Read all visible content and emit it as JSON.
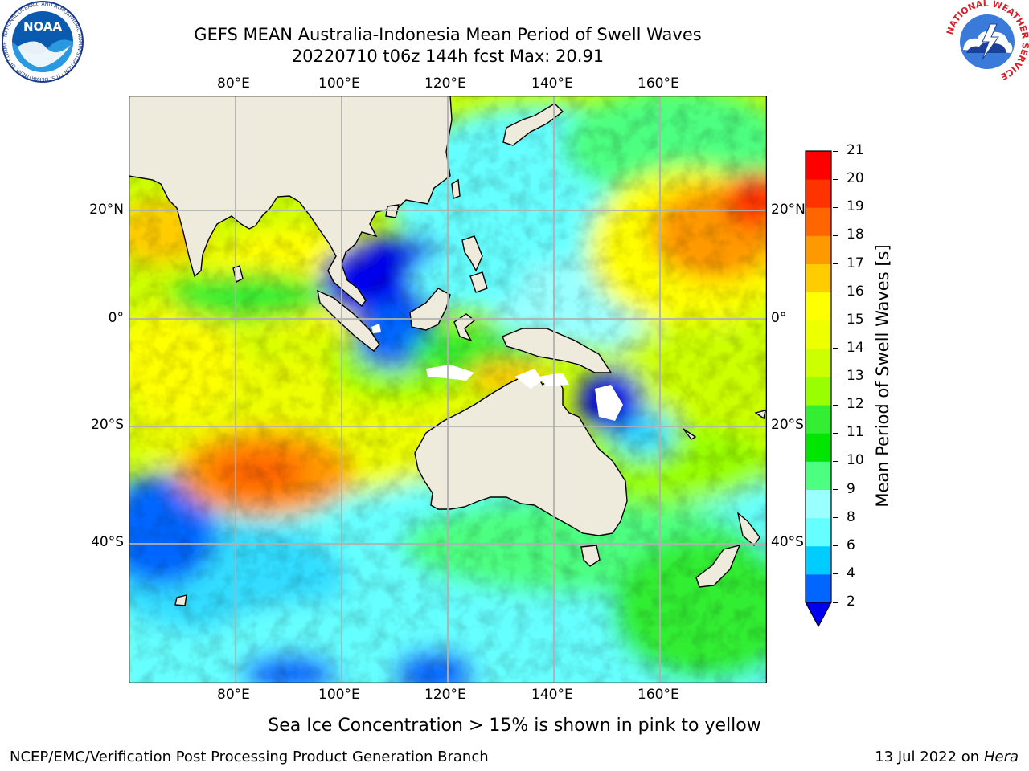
{
  "title": {
    "line1": "GEFS MEAN Australia-Indonesia Mean Period of Swell Waves",
    "line2": "20220710 t06z 144h fcst   Max: 20.91"
  },
  "map": {
    "lon_labels": [
      "80°E",
      "100°E",
      "120°E",
      "140°E",
      "160°E"
    ],
    "lat_labels": [
      "20°N",
      "0°",
      "20°S",
      "40°S"
    ],
    "land_color": "#efebdc",
    "grid_color": "#b0b0b0"
  },
  "colorbar": {
    "title": "Mean Period of Swell Waves [s]",
    "ticks": [
      "2",
      "4",
      "6",
      "8",
      "9",
      "10",
      "11",
      "12",
      "13",
      "14",
      "15",
      "16",
      "17",
      "18",
      "19",
      "20",
      "21"
    ],
    "colors": [
      "#0066ff",
      "#00ccff",
      "#66ffff",
      "#99ffff",
      "#4dff80",
      "#00e600",
      "#33ee33",
      "#99ff00",
      "#ccff00",
      "#eeff00",
      "#ffff00",
      "#ffcc00",
      "#ff9900",
      "#ff6600",
      "#ff3300",
      "#ff0000"
    ],
    "extend_color": "#0000ee"
  },
  "note": "Sea Ice Concentration > 15% is shown in pink to yellow",
  "footer": {
    "left": "NCEP/EMC/Verification Post Processing Product Generation Branch",
    "date": "13 Jul 2022 on ",
    "host": "Hera"
  },
  "logos": {
    "left_text": "NOAA",
    "left_ring": "NATIONAL OCEANIC AND ATMOSPHERIC ADMINISTRATION · U.S. DEPARTMENT OF COMMERCE",
    "right_ring": "NATIONAL WEATHER SERVICE"
  }
}
